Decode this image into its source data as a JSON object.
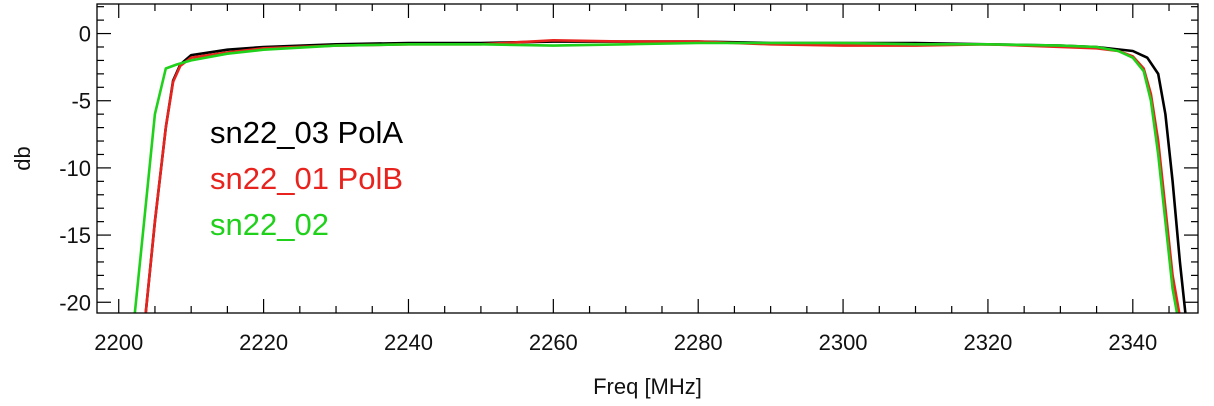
{
  "chart_data": {
    "type": "line",
    "xlabel": "Freq [MHz]",
    "ylabel": "db",
    "xlim": [
      2197,
      2349
    ],
    "ylim": [
      -20.8,
      2.2
    ],
    "xticks": [
      2200,
      2220,
      2240,
      2260,
      2280,
      2300,
      2320,
      2340
    ],
    "xtick_labels": [
      "2200",
      "2220",
      "2240",
      "2260",
      "2280",
      "2300",
      "2320",
      "2340"
    ],
    "yticks": [
      0,
      -5,
      -10,
      -15,
      -20
    ],
    "ytick_labels": [
      "0",
      "-5",
      "-10",
      "-15",
      "-20"
    ],
    "grid": false,
    "legend_position": "upper-left",
    "series": [
      {
        "name": "sn22_03 PolA",
        "color": "#000000",
        "x": [
          2203.5,
          2205,
          2206.5,
          2207.5,
          2208.5,
          2210,
          2215,
          2220,
          2230,
          2240,
          2250,
          2260,
          2270,
          2280,
          2290,
          2300,
          2310,
          2320,
          2330,
          2335,
          2340,
          2342,
          2343.5,
          2344.5,
          2345.5,
          2346.5,
          2347.5
        ],
        "y": [
          -22,
          -14,
          -7,
          -3.5,
          -2.3,
          -1.6,
          -1.2,
          -1.0,
          -0.8,
          -0.7,
          -0.7,
          -0.6,
          -0.6,
          -0.6,
          -0.7,
          -0.7,
          -0.7,
          -0.8,
          -0.9,
          -1.0,
          -1.3,
          -1.8,
          -3,
          -6,
          -11,
          -17,
          -22
        ]
      },
      {
        "name": "sn22_01 PolB",
        "color": "#e8231e",
        "x": [
          2203.5,
          2205,
          2206.5,
          2207.5,
          2208.5,
          2210,
          2215,
          2220,
          2230,
          2240,
          2250,
          2260,
          2270,
          2280,
          2290,
          2300,
          2310,
          2320,
          2330,
          2335,
          2338,
          2340,
          2341.5,
          2342.5,
          2343.5,
          2344.5,
          2345.5,
          2346.8
        ],
        "y": [
          -22,
          -14,
          -7,
          -3.6,
          -2.4,
          -1.8,
          -1.4,
          -1.1,
          -0.9,
          -0.8,
          -0.8,
          -0.5,
          -0.6,
          -0.6,
          -0.8,
          -0.9,
          -0.9,
          -0.8,
          -1.0,
          -1.1,
          -1.3,
          -1.7,
          -2.6,
          -4.5,
          -8,
          -13,
          -18,
          -22
        ]
      },
      {
        "name": "sn22_02",
        "color": "#1fd11a",
        "x": [
          2202,
          2203.5,
          2205,
          2206.5,
          2208,
          2210,
          2215,
          2220,
          2230,
          2240,
          2250,
          2260,
          2270,
          2280,
          2290,
          2300,
          2310,
          2320,
          2330,
          2335,
          2338,
          2340,
          2341.5,
          2342.5,
          2343.5,
          2344.5,
          2345.5,
          2346.5
        ],
        "y": [
          -22,
          -14,
          -6,
          -2.6,
          -2.3,
          -2.0,
          -1.5,
          -1.2,
          -0.9,
          -0.8,
          -0.8,
          -0.9,
          -0.8,
          -0.7,
          -0.7,
          -0.7,
          -0.8,
          -0.8,
          -0.9,
          -1.0,
          -1.3,
          -1.8,
          -2.8,
          -5,
          -9,
          -14,
          -19,
          -22
        ]
      }
    ]
  }
}
